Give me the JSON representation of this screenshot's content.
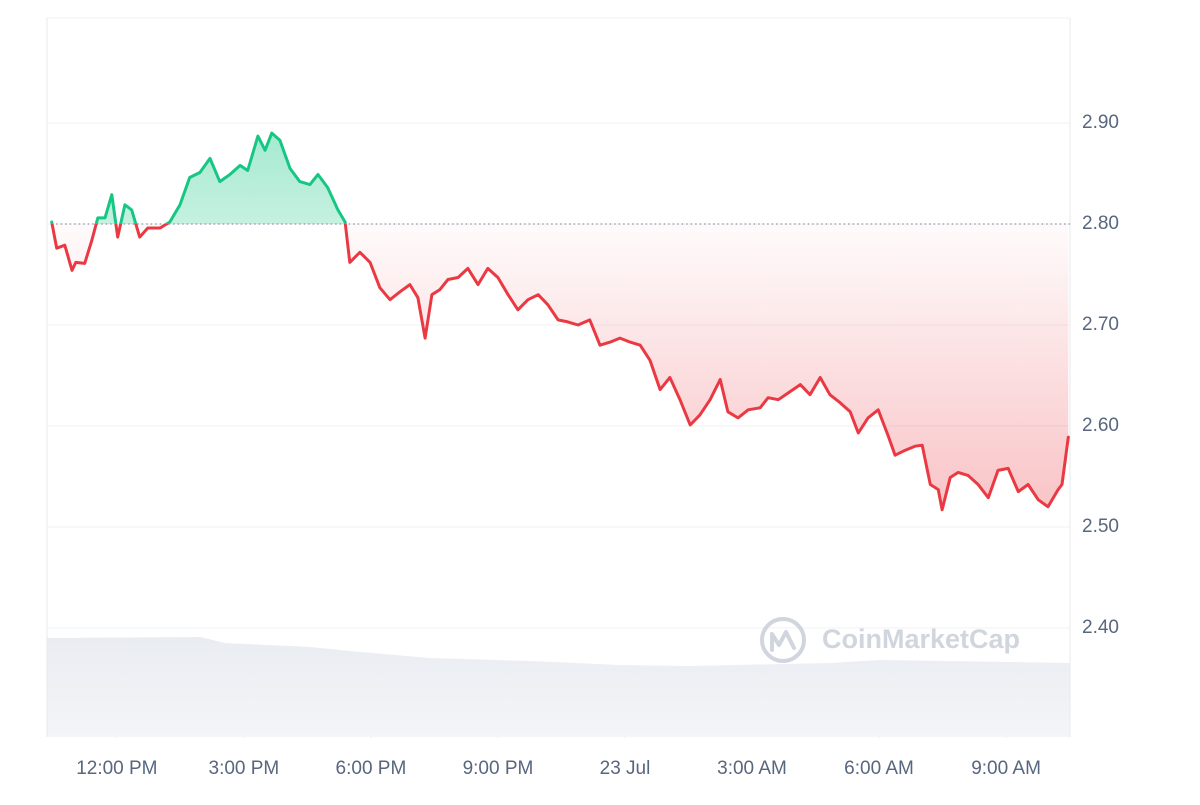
{
  "chart_data": {
    "type": "line",
    "watermark": "CoinMarketCap",
    "baseline": 2.8,
    "colors": {
      "up": "#16c784",
      "down": "#ea3943"
    },
    "xlim": [
      10.35,
      34.51
    ],
    "ylim": [
      2.292,
      3.002
    ],
    "xticks": [
      {
        "value": 12,
        "label": "12:00 PM"
      },
      {
        "value": 15,
        "label": "3:00 PM"
      },
      {
        "value": 18,
        "label": "6:00 PM"
      },
      {
        "value": 21,
        "label": "9:00 PM"
      },
      {
        "value": 24,
        "label": "23 Jul"
      },
      {
        "value": 27,
        "label": "3:00 AM"
      },
      {
        "value": 30,
        "label": "6:00 AM"
      },
      {
        "value": 33,
        "label": "9:00 AM"
      }
    ],
    "yticks": [
      {
        "value": 2.4,
        "label": "2.40"
      },
      {
        "value": 2.5,
        "label": "2.50"
      },
      {
        "value": 2.6,
        "label": "2.60"
      },
      {
        "value": 2.7,
        "label": "2.70"
      },
      {
        "value": 2.8,
        "label": "2.80"
      },
      {
        "value": 2.9,
        "label": "2.90"
      }
    ],
    "grid": true,
    "x": [
      10.46,
      10.58,
      10.77,
      10.94,
      11.03,
      11.24,
      11.41,
      11.55,
      11.72,
      11.88,
      12.02,
      12.19,
      12.35,
      12.54,
      12.73,
      13.02,
      13.25,
      13.49,
      13.72,
      13.96,
      14.2,
      14.43,
      14.67,
      14.91,
      15.09,
      15.33,
      15.5,
      15.66,
      15.85,
      16.09,
      16.32,
      16.56,
      16.75,
      16.98,
      17.22,
      17.39,
      17.5,
      17.74,
      17.98,
      18.21,
      18.45,
      18.69,
      18.92,
      19.11,
      19.28,
      19.44,
      19.63,
      19.82,
      20.06,
      20.29,
      20.53,
      20.76,
      21.0,
      21.24,
      21.47,
      21.71,
      21.95,
      22.18,
      22.42,
      22.65,
      22.89,
      23.17,
      23.41,
      23.65,
      23.88,
      24.12,
      24.36,
      24.59,
      24.83,
      25.06,
      25.3,
      25.54,
      25.77,
      26.01,
      26.25,
      26.43,
      26.67,
      26.91,
      27.19,
      27.38,
      27.62,
      27.9,
      28.14,
      28.37,
      28.61,
      28.84,
      29.08,
      29.32,
      29.51,
      29.74,
      29.98,
      30.21,
      30.38,
      30.62,
      30.85,
      31.02,
      31.21,
      31.4,
      31.49,
      31.68,
      31.87,
      32.1,
      32.34,
      32.58,
      32.81,
      33.05,
      33.29,
      33.52,
      33.76,
      33.99,
      34.23,
      34.32,
      34.47
    ],
    "values": [
      2.802,
      2.776,
      2.779,
      2.754,
      2.762,
      2.761,
      2.784,
      2.806,
      2.806,
      2.829,
      2.787,
      2.819,
      2.814,
      2.787,
      2.796,
      2.796,
      2.802,
      2.819,
      2.846,
      2.851,
      2.865,
      2.842,
      2.849,
      2.858,
      2.853,
      2.887,
      2.873,
      2.89,
      2.883,
      2.855,
      2.842,
      2.839,
      2.849,
      2.836,
      2.814,
      2.802,
      2.762,
      2.772,
      2.762,
      2.737,
      2.725,
      2.733,
      2.74,
      2.727,
      2.687,
      2.73,
      2.735,
      2.745,
      2.747,
      2.756,
      2.74,
      2.756,
      2.747,
      2.73,
      2.715,
      2.725,
      2.73,
      2.72,
      2.705,
      2.703,
      2.7,
      2.705,
      2.68,
      2.683,
      2.687,
      2.683,
      2.68,
      2.665,
      2.636,
      2.648,
      2.626,
      2.601,
      2.611,
      2.626,
      2.646,
      2.614,
      2.608,
      2.616,
      2.618,
      2.628,
      2.626,
      2.634,
      2.641,
      2.631,
      2.648,
      2.631,
      2.623,
      2.614,
      2.593,
      2.608,
      2.616,
      2.591,
      2.571,
      2.576,
      2.58,
      2.581,
      2.542,
      2.537,
      2.517,
      2.549,
      2.554,
      2.551,
      2.542,
      2.529,
      2.556,
      2.558,
      2.535,
      2.542,
      2.527,
      2.52,
      2.537,
      2.542,
      2.589
    ]
  }
}
